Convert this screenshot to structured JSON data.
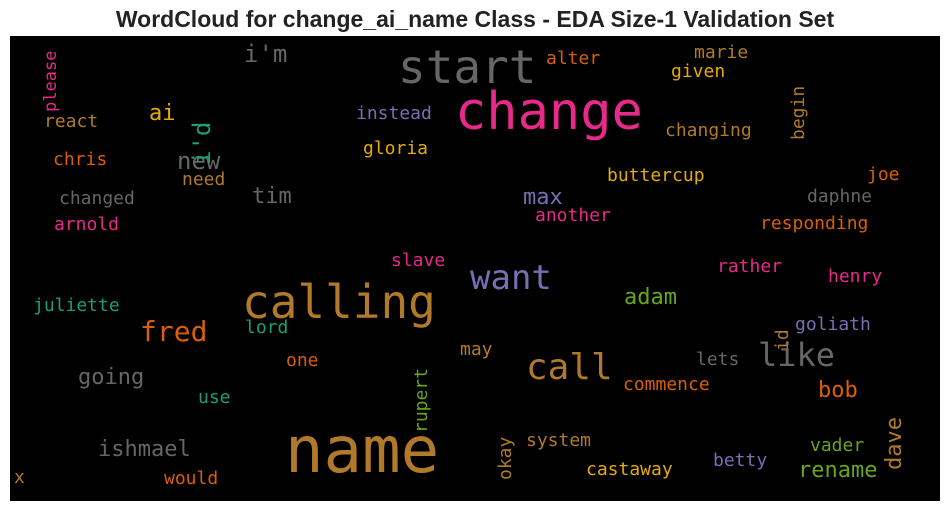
{
  "chart_data": {
    "type": "wordcloud",
    "title": "WordCloud for change_ai_name Class - EDA Size-1 Validation Set",
    "background": "#000000",
    "words": [
      {
        "text": "name",
        "color": "#b07a2a"
      },
      {
        "text": "calling",
        "color": "#b07a2a"
      },
      {
        "text": "change",
        "color": "#e7298a"
      },
      {
        "text": "start",
        "color": "#666666"
      },
      {
        "text": "want",
        "color": "#7570b3"
      },
      {
        "text": "call",
        "color": "#b07a2a"
      },
      {
        "text": "like",
        "color": "#666666"
      },
      {
        "text": "fred",
        "color": "#d95f02"
      },
      {
        "text": "new",
        "color": "#666666"
      },
      {
        "text": "i'm",
        "color": "#666666"
      },
      {
        "text": "i'd",
        "color": "#1b9e77"
      },
      {
        "text": "going",
        "color": "#666666"
      },
      {
        "text": "ishmael",
        "color": "#666666"
      },
      {
        "text": "dave",
        "color": "#b07a2a"
      },
      {
        "text": "adam",
        "color": "#66a61e"
      },
      {
        "text": "max",
        "color": "#7570b3"
      },
      {
        "text": "rename",
        "color": "#66a61e"
      },
      {
        "text": "bob",
        "color": "#d95f02"
      },
      {
        "text": "tim",
        "color": "#666666"
      },
      {
        "text": "ai",
        "color": "#e6ab02"
      },
      {
        "text": "buttercup",
        "color": "#e6ab02"
      },
      {
        "text": "castaway",
        "color": "#e6ab02"
      },
      {
        "text": "gloria",
        "color": "#e6ab02"
      },
      {
        "text": "instead",
        "color": "#7570b3"
      },
      {
        "text": "changing",
        "color": "#b07a2a"
      },
      {
        "text": "responding",
        "color": "#d95f02"
      },
      {
        "text": "given",
        "color": "#e6ab02"
      },
      {
        "text": "marie",
        "color": "#b07a2a"
      },
      {
        "text": "alter",
        "color": "#d95f02"
      },
      {
        "text": "begin",
        "color": "#b07a2a"
      },
      {
        "text": "please",
        "color": "#e7298a"
      },
      {
        "text": "react",
        "color": "#b07a2a"
      },
      {
        "text": "chris",
        "color": "#d95f02"
      },
      {
        "text": "need",
        "color": "#b07a2a"
      },
      {
        "text": "changed",
        "color": "#666666"
      },
      {
        "text": "arnold",
        "color": "#e7298a"
      },
      {
        "text": "juliette",
        "color": "#1b9e77"
      },
      {
        "text": "lord",
        "color": "#1b9e77"
      },
      {
        "text": "one",
        "color": "#d95f02"
      },
      {
        "text": "use",
        "color": "#1b9e77"
      },
      {
        "text": "would",
        "color": "#d95f02"
      },
      {
        "text": "x",
        "color": "#b07a2a"
      },
      {
        "text": "slave",
        "color": "#e7298a"
      },
      {
        "text": "rupert",
        "color": "#66a61e"
      },
      {
        "text": "may",
        "color": "#b07a2a"
      },
      {
        "text": "okay",
        "color": "#b07a2a"
      },
      {
        "text": "system",
        "color": "#b07a2a"
      },
      {
        "text": "another",
        "color": "#e7298a"
      },
      {
        "text": "commence",
        "color": "#d95f02"
      },
      {
        "text": "lets",
        "color": "#666666"
      },
      {
        "text": "rather",
        "color": "#e7298a"
      },
      {
        "text": "id",
        "color": "#b07a2a"
      },
      {
        "text": "henry",
        "color": "#e7298a"
      },
      {
        "text": "goliath",
        "color": "#7570b3"
      },
      {
        "text": "joe",
        "color": "#d95f02"
      },
      {
        "text": "daphne",
        "color": "#666666"
      },
      {
        "text": "vader",
        "color": "#66a61e"
      },
      {
        "text": "betty",
        "color": "#7570b3"
      }
    ]
  }
}
